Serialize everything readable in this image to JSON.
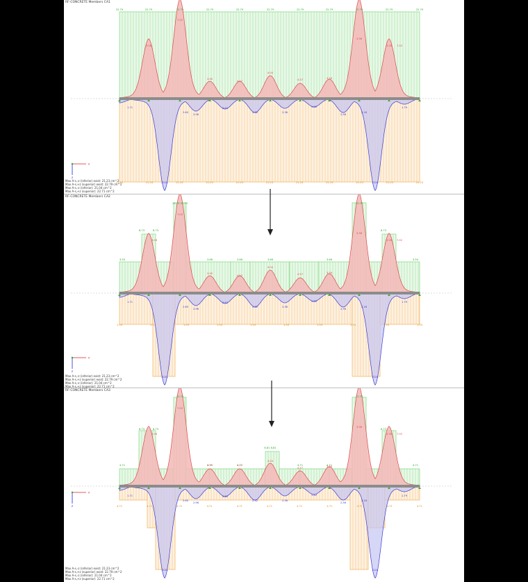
{
  "panels": [
    {
      "title": "RF-CONCRETE Members CA1",
      "legend": [
        "Max A-s,-z (inferior) exist: 21.23 cm^2",
        "Max A-s,+z (superior) exist: 22.79 cm^2",
        "Max A-s,-z (inferior): 21.04 cm^2",
        "Max A-s,+z (superior): 22.71 cm^2"
      ],
      "top_labels": [
        "22.79",
        "22.79",
        "22.79",
        "22.79",
        "22.79",
        "22.79",
        "22.79",
        "22.79",
        "22.79",
        "22.79",
        "22.79"
      ],
      "red_labels": [
        "3.26",
        "7.02",
        "3.95",
        "4.27",
        "4.04",
        "4.57",
        "3.59",
        "3.36",
        "3.26",
        "7.02"
      ],
      "blue_labels": [
        "1.71",
        "2.60",
        "2.96",
        "3.62",
        "2.32",
        "2.36",
        "1.82",
        "2.56",
        "2.18",
        "1.79"
      ],
      "bottom_labels": [
        "21.23",
        "21.23",
        "21.23",
        "21.23",
        "21.23",
        "21.23",
        "21.23",
        "21.23",
        "21.23",
        "21.23",
        "21.23"
      ],
      "peak_labels": [
        "2124",
        "2124"
      ]
    },
    {
      "title": "RF-CONCRETE Members CA2",
      "legend": [
        "Max A-s,-z (inferior) exist: 21.23 cm^2",
        "Max A-s,+z (superior) exist: 22.79 cm^2",
        "Max A-s,-z (inferior): 21.04 cm^2",
        "Max A-s,+z (superior): 22.71 cm^2"
      ],
      "top_labels": [
        "3.50",
        "8.73",
        "8.73",
        "22.79 22.79",
        "3.66",
        "3.66",
        "3.66",
        "3.66",
        "22.79",
        "8.73",
        "3.50"
      ],
      "red_labels": [
        "3.26",
        "7.02",
        "3.95",
        "4.27",
        "4.04",
        "4.57",
        "3.59",
        "3.36",
        "3.26",
        "7.02"
      ],
      "blue_labels": [
        "1.71",
        "2.60",
        "2.96",
        "3.62",
        "2.32",
        "2.36",
        "1.82",
        "2.56",
        "2.18",
        "1.79"
      ],
      "bottom_labels": [
        "1.93",
        "1.93",
        "1.93",
        "1.93",
        "1.93",
        "1.93",
        "1.93",
        "1.93",
        "1.93",
        "1.93"
      ],
      "peak_labels": [
        "2124",
        "2124"
      ]
    },
    {
      "title": "RF-CONCRETE Members CA3",
      "legend": [
        "Max A-s,-z (inferior) exist: 21.23 cm^2",
        "Max A-s,+z (superior) exist: 22.79 cm^2",
        "Max A-s,-z (inferior): 21.04 cm^2",
        "Max A-s,+z (superior): 22.71 cm^2"
      ],
      "top_labels": [
        "4.71",
        "8.73",
        "8.73",
        "22.79",
        "4.71",
        "4.71",
        "6.81 6.81",
        "4.71",
        "4.71",
        "22.79",
        "8.73",
        "4.71"
      ],
      "red_labels": [
        "3.26",
        "7.02",
        "3.95",
        "4.27",
        "4.04",
        "4.57",
        "3.59",
        "3.36",
        "3.26",
        "7.02"
      ],
      "blue_labels": [
        "1.71",
        "2.60",
        "2.96",
        "3.62",
        "2.32",
        "2.36",
        "1.82",
        "2.56",
        "2.18",
        "1.79"
      ],
      "bottom_labels": [
        "4.71",
        "4.71",
        "4.71",
        "4.71",
        "4.71",
        "4.71",
        "4.71",
        "4.71",
        "4.71",
        "4.71",
        "4.71"
      ],
      "peak_labels": [
        "2124",
        "2124"
      ]
    }
  ],
  "axes": {
    "x": "X",
    "z": "Z"
  },
  "colors": {
    "superior": "#6cd36c",
    "inferior": "#f0a63c",
    "positive": "#d94a4a",
    "positive_fill": "#f5b8b8",
    "negative": "#3a3ad0",
    "negative_fill": "#c4c4f2",
    "beam": "#8c8c8c"
  }
}
